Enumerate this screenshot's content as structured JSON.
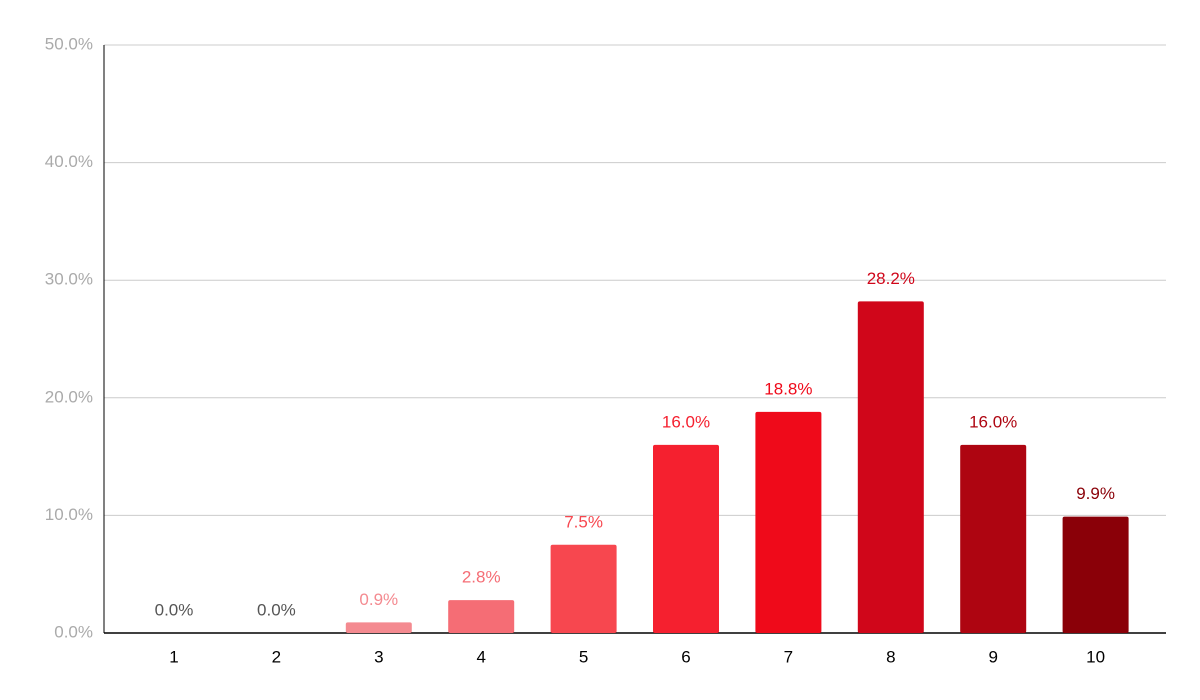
{
  "chart_data": {
    "type": "bar",
    "categories": [
      "1",
      "2",
      "3",
      "4",
      "5",
      "6",
      "7",
      "8",
      "9",
      "10"
    ],
    "values": [
      0,
      0,
      0.9,
      2.8,
      7.5,
      16.0,
      18.8,
      28.2,
      16.0,
      9.9
    ],
    "value_labels": [
      "0.0%",
      "0.0%",
      "0.9%",
      "2.8%",
      "7.5%",
      "16.0%",
      "18.8%",
      "28.2%",
      "16.0%",
      "9.9%"
    ],
    "colors": [
      "#555555",
      "#555555",
      "#f48a90",
      "#f56d75",
      "#f7474f",
      "#f5202f",
      "#ef0a1a",
      "#d0061a",
      "#ae0511",
      "#8a0008"
    ],
    "ylim": [
      0,
      50
    ],
    "yticks": [
      {
        "value": 0,
        "label": "0.0%"
      },
      {
        "value": 10,
        "label": "10.0%"
      },
      {
        "value": 20,
        "label": "20.0%"
      },
      {
        "value": 30,
        "label": "30.0%"
      },
      {
        "value": 40,
        "label": "40.0%"
      },
      {
        "value": 50,
        "label": "50.0%"
      }
    ],
    "grid": true
  }
}
